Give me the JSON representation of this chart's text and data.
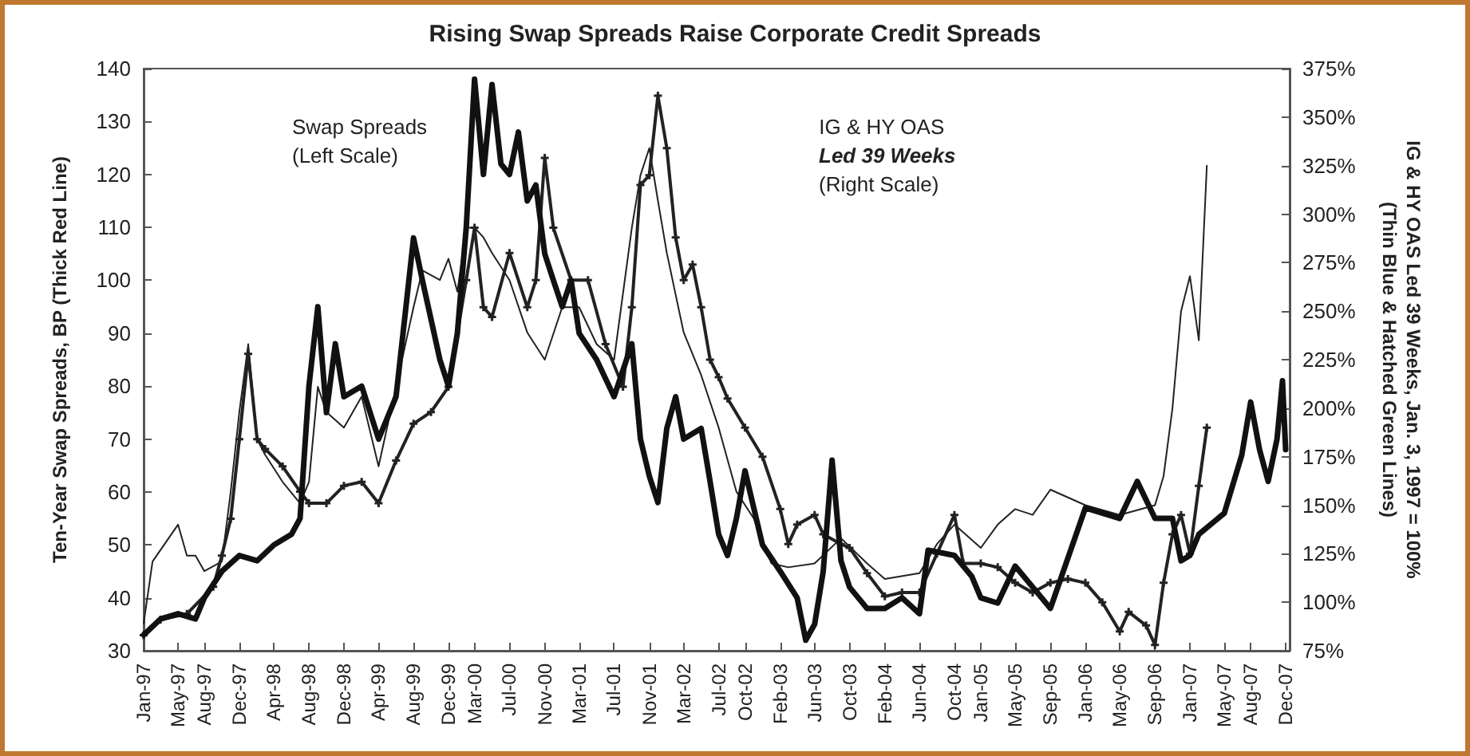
{
  "chart_data": {
    "type": "line",
    "title": "Rising Swap Spreads Raise Corporate Credit Spreads",
    "ylabel": "Ten-Year Swap Spreads, BP (Thick Red Line)",
    "y2label": "IG & HY OAS Led 39 Weeks, Jan. 3, 1997 = 100%\n(Thin Blue & Hatched Green Lines)",
    "annotations": [
      "Swap Spreads",
      "(Left Scale)",
      "IG & HY OAS",
      "Led 39 Weeks",
      "(Right Scale)"
    ],
    "xlim": [
      "1997-01",
      "2007-12-15"
    ],
    "xticks": [
      {
        "value": "1997-01",
        "label": "Jan-97"
      },
      {
        "value": "1997-05",
        "label": "May-97"
      },
      {
        "value": "1997-08",
        "label": "Aug-97"
      },
      {
        "value": "1997-12",
        "label": "Dec-97"
      },
      {
        "value": "1998-04",
        "label": "Apr-98"
      },
      {
        "value": "1998-08",
        "label": "Aug-98"
      },
      {
        "value": "1998-12",
        "label": "Dec-98"
      },
      {
        "value": "1999-04",
        "label": "Apr-99"
      },
      {
        "value": "1999-08",
        "label": "Aug-99"
      },
      {
        "value": "1999-12",
        "label": "Dec-99"
      },
      {
        "value": "2000-03",
        "label": "Mar-00"
      },
      {
        "value": "2000-07",
        "label": "Jul-00"
      },
      {
        "value": "2000-11",
        "label": "Nov-00"
      },
      {
        "value": "2001-03",
        "label": "Mar-01"
      },
      {
        "value": "2001-07",
        "label": "Jul-01"
      },
      {
        "value": "2001-11",
        "label": "Nov-01"
      },
      {
        "value": "2002-03",
        "label": "Mar-02"
      },
      {
        "value": "2002-07",
        "label": "Jul-02"
      },
      {
        "value": "2002-10",
        "label": "Oct-02"
      },
      {
        "value": "2003-02",
        "label": "Feb-03"
      },
      {
        "value": "2003-06",
        "label": "Jun-03"
      },
      {
        "value": "2003-10",
        "label": "Oct-03"
      },
      {
        "value": "2004-02",
        "label": "Feb-04"
      },
      {
        "value": "2004-06",
        "label": "Jun-04"
      },
      {
        "value": "2004-10",
        "label": "Oct-04"
      },
      {
        "value": "2005-01",
        "label": "Jan-05"
      },
      {
        "value": "2005-05",
        "label": "May-05"
      },
      {
        "value": "2005-09",
        "label": "Sep-05"
      },
      {
        "value": "2006-01",
        "label": "Jan-06"
      },
      {
        "value": "2006-05",
        "label": "May-06"
      },
      {
        "value": "2006-09",
        "label": "Sep-06"
      },
      {
        "value": "2007-01",
        "label": "Jan-07"
      },
      {
        "value": "2007-05",
        "label": "May-07"
      },
      {
        "value": "2007-08",
        "label": "Aug-07"
      },
      {
        "value": "2007-12",
        "label": "Dec-07"
      }
    ],
    "ylim": [
      30,
      140
    ],
    "yticks": [
      30,
      40,
      50,
      60,
      70,
      80,
      90,
      100,
      110,
      120,
      130,
      140
    ],
    "y2lim": [
      75,
      375
    ],
    "y2ticks": [
      {
        "value": 75,
        "label": "75%"
      },
      {
        "value": 100,
        "label": "100%"
      },
      {
        "value": 125,
        "label": "125%"
      },
      {
        "value": 150,
        "label": "150%"
      },
      {
        "value": 175,
        "label": "175%"
      },
      {
        "value": 200,
        "label": "200%"
      },
      {
        "value": 225,
        "label": "225%"
      },
      {
        "value": 250,
        "label": "250%"
      },
      {
        "value": 275,
        "label": "275%"
      },
      {
        "value": 300,
        "label": "300%"
      },
      {
        "value": 325,
        "label": "325%"
      },
      {
        "value": 350,
        "label": "350%"
      },
      {
        "value": 375,
        "label": "375%"
      }
    ],
    "series": [
      {
        "color": "#111111",
        "marker": "none",
        "line_style": "solid",
        "x": [
          "1997-01",
          "1997-03",
          "1997-05",
          "1997-07",
          "1997-08",
          "1997-10",
          "1997-12",
          "1998-02",
          "1998-04",
          "1998-06",
          "1998-07",
          "1998-08",
          "1998-09",
          "1998-10",
          "1998-11",
          "1998-12",
          "1999-02",
          "1999-04",
          "1999-06",
          "1999-08",
          "1999-09",
          "1999-11",
          "1999-12",
          "2000-01",
          "2000-02",
          "2000-03",
          "2000-04",
          "2000-05",
          "2000-06",
          "2000-07",
          "2000-08",
          "2000-09",
          "2000-10",
          "2000-11",
          "2000-12",
          "2001-01",
          "2001-02",
          "2001-03",
          "2001-05",
          "2001-07",
          "2001-09",
          "2001-10",
          "2001-11",
          "2001-12",
          "2002-01",
          "2002-02",
          "2002-03",
          "2002-05",
          "2002-06",
          "2002-07",
          "2002-08",
          "2002-09",
          "2002-10",
          "2002-12",
          "2003-02",
          "2003-04",
          "2003-05",
          "2003-06",
          "2003-07",
          "2003-08",
          "2003-09",
          "2003-10",
          "2003-12",
          "2004-02",
          "2004-04",
          "2004-06",
          "2004-07",
          "2004-10",
          "2004-12",
          "2005-01",
          "2005-03",
          "2005-05",
          "2005-09",
          "2006-01",
          "2006-05",
          "2006-07",
          "2006-09",
          "2006-11",
          "2006-12",
          "2007-01",
          "2007-02",
          "2007-05",
          "2007-07",
          "2007-08",
          "2007-09",
          "2007-10",
          "2007-11",
          "2007-11-20",
          "2007-12"
        ],
        "values": [
          33,
          36,
          37,
          36,
          40,
          45,
          48,
          47,
          50,
          52,
          55,
          80,
          95,
          75,
          88,
          78,
          80,
          70,
          78,
          108,
          100,
          85,
          80,
          90,
          110,
          138,
          120,
          137,
          122,
          120,
          128,
          115,
          118,
          105,
          100,
          95,
          100,
          90,
          85,
          78,
          88,
          70,
          63,
          58,
          72,
          78,
          70,
          72,
          62,
          52,
          48,
          55,
          64,
          50,
          45,
          40,
          32,
          35,
          45,
          66,
          47,
          42,
          38,
          38,
          40,
          37,
          49,
          48,
          44,
          40,
          39,
          46,
          38,
          57,
          55,
          62,
          55,
          55,
          47,
          48,
          52,
          56,
          67,
          77,
          68,
          62,
          70,
          81,
          68
        ]
      },
      {
        "color": "#222222",
        "axis": "y2",
        "marker": "none",
        "line_style": "solid",
        "x": [
          "1997-01",
          "1997-02",
          "1997-05",
          "1997-06",
          "1997-07",
          "1997-08",
          "1997-10",
          "1997-11",
          "1997-12",
          "1998-01",
          "1998-02",
          "1998-03",
          "1998-05",
          "1998-07",
          "1998-08",
          "1998-09",
          "1998-10",
          "1998-12",
          "1999-02",
          "1999-04",
          "1999-06",
          "1999-08",
          "1999-09",
          "1999-11",
          "1999-12",
          "2000-01",
          "2000-02",
          "2000-03",
          "2000-04",
          "2000-05",
          "2000-07",
          "2000-09",
          "2000-11",
          "2001-01",
          "2001-03",
          "2001-05",
          "2001-07",
          "2001-09",
          "2001-10",
          "2001-11",
          "2001-12",
          "2002-01",
          "2002-03",
          "2002-05",
          "2002-07",
          "2002-09",
          "2002-11",
          "2003-01",
          "2003-03",
          "2003-06",
          "2003-09",
          "2003-12",
          "2004-02",
          "2004-06",
          "2004-08",
          "2004-10",
          "2005-01",
          "2005-03",
          "2005-05",
          "2005-07",
          "2005-09",
          "2006-01",
          "2006-05",
          "2006-09",
          "2006-10",
          "2006-11",
          "2006-12",
          "2007-01",
          "2007-02",
          "2007-03"
        ],
        "values": [
          89,
          121,
          140,
          124,
          124,
          116,
          121,
          157,
          198,
          233,
          184,
          176,
          162,
          151,
          162,
          211,
          198,
          190,
          206,
          170,
          211,
          252,
          271,
          266,
          277,
          260,
          293,
          293,
          288,
          280,
          266,
          239,
          225,
          252,
          252,
          233,
          225,
          293,
          320,
          334,
          307,
          280,
          239,
          217,
          190,
          157,
          143,
          120,
          118,
          120,
          133,
          120,
          112,
          115,
          130,
          140,
          128,
          140,
          148,
          145,
          158,
          150,
          145,
          150,
          165,
          200,
          250,
          268,
          235,
          325
        ]
      },
      {
        "color": "#222222",
        "axis": "y2",
        "marker": "cross",
        "line_style": "solid",
        "x": [
          "1997-01",
          "1997-03",
          "1997-06",
          "1997-09",
          "1997-10",
          "1997-11",
          "1997-12",
          "1998-01",
          "1998-02",
          "1998-03",
          "1998-05",
          "1998-07",
          "1998-08",
          "1998-10",
          "1998-12",
          "1999-02",
          "1999-04",
          "1999-06",
          "1999-08",
          "1999-10",
          "1999-12",
          "2000-02",
          "2000-03",
          "2000-04",
          "2000-05",
          "2000-07",
          "2000-09",
          "2000-10",
          "2000-11",
          "2000-12",
          "2001-02",
          "2001-04",
          "2001-06",
          "2001-08",
          "2001-09",
          "2001-10",
          "2001-11",
          "2001-12",
          "2002-01",
          "2002-02",
          "2002-03",
          "2002-04",
          "2002-05",
          "2002-06",
          "2002-07",
          "2002-08",
          "2002-10",
          "2002-12",
          "2003-02",
          "2003-03",
          "2003-04",
          "2003-06",
          "2003-07",
          "2003-09",
          "2003-10",
          "2003-12",
          "2004-02",
          "2004-04",
          "2004-06",
          "2004-08",
          "2004-10",
          "2004-11",
          "2005-01",
          "2005-03",
          "2005-05",
          "2005-07",
          "2005-09",
          "2005-11",
          "2006-01",
          "2006-03",
          "2006-05",
          "2006-06",
          "2006-08",
          "2006-09",
          "2006-10",
          "2006-11",
          "2006-12",
          "2007-01",
          "2007-02",
          "2007-03"
        ],
        "values": [
          83,
          91,
          94,
          108,
          124,
          143,
          184,
          228,
          184,
          179,
          170,
          157,
          151,
          151,
          160,
          162,
          151,
          173,
          192,
          198,
          211,
          266,
          293,
          252,
          247,
          280,
          252,
          266,
          329,
          293,
          266,
          266,
          233,
          211,
          252,
          315,
          320,
          361,
          334,
          288,
          266,
          274,
          252,
          225,
          216,
          205,
          190,
          175,
          148,
          130,
          140,
          145,
          135,
          130,
          128,
          115,
          103,
          105,
          105,
          125,
          145,
          120,
          120,
          118,
          110,
          105,
          110,
          112,
          110,
          100,
          85,
          95,
          88,
          78,
          110,
          135,
          145,
          125,
          160,
          190
        ]
      }
    ]
  }
}
